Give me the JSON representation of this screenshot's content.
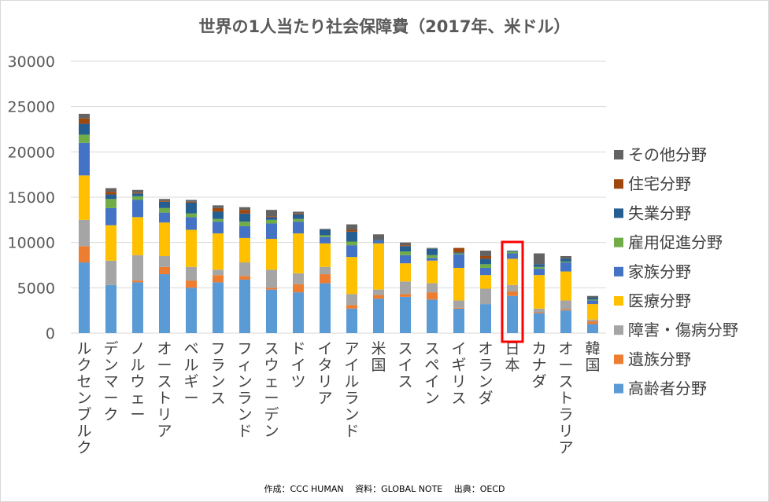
{
  "chart_data": {
    "type": "bar",
    "stacked": true,
    "title": "世界の1人当たり社会保障費（2017年、米ドル）",
    "ylim": [
      0,
      30000
    ],
    "yticks": [
      0,
      5000,
      10000,
      15000,
      20000,
      25000,
      30000
    ],
    "categories": [
      "ルクセンブルク",
      "デンマーク",
      "ノルウェー",
      "オーストリア",
      "ベルギー",
      "フランス",
      "フィンランド",
      "スウェーデン",
      "ドイツ",
      "イタリア",
      "アイルランド",
      "米国",
      "スイス",
      "スペイン",
      "イギリス",
      "オランダ",
      "日本",
      "カナダ",
      "オーストラリア",
      "韓国"
    ],
    "highlight_category": "日本",
    "legend_position": "right",
    "series": [
      {
        "name": "高齢者分野",
        "color": "#5B9BD5",
        "values": [
          7800,
          5300,
          5600,
          6500,
          5000,
          5600,
          5900,
          4800,
          4500,
          5500,
          2700,
          3800,
          4000,
          3700,
          2700,
          3200,
          4100,
          2200,
          2500,
          1000
        ]
      },
      {
        "name": "遺族分野",
        "color": "#ED7D31",
        "values": [
          1800,
          0,
          200,
          800,
          800,
          800,
          400,
          200,
          900,
          1000,
          400,
          400,
          300,
          800,
          100,
          0,
          500,
          100,
          100,
          300
        ]
      },
      {
        "name": "障害・傷病分野",
        "color": "#A5A5A5",
        "values": [
          2900,
          2700,
          2800,
          1200,
          1500,
          600,
          1500,
          2000,
          1200,
          800,
          1200,
          600,
          1400,
          1000,
          800,
          1700,
          700,
          400,
          1000,
          200
        ]
      },
      {
        "name": "医療分野",
        "color": "#FFC000",
        "values": [
          4900,
          3900,
          4200,
          3700,
          4100,
          4000,
          2700,
          3400,
          4400,
          2600,
          4100,
          5100,
          2000,
          2500,
          3600,
          1500,
          2900,
          3700,
          3200,
          1700
        ]
      },
      {
        "name": "家族分野",
        "color": "#4472C4",
        "values": [
          3600,
          1900,
          1900,
          1100,
          1400,
          1300,
          1300,
          1700,
          1300,
          700,
          1300,
          300,
          900,
          300,
          1500,
          800,
          600,
          700,
          1000,
          400
        ]
      },
      {
        "name": "雇用促進分野",
        "color": "#70AD47",
        "values": [
          900,
          1000,
          400,
          500,
          400,
          300,
          500,
          400,
          300,
          200,
          400,
          0,
          400,
          300,
          100,
          400,
          200,
          200,
          100,
          100
        ]
      },
      {
        "name": "失業分野",
        "color": "#255E91",
        "values": [
          1200,
          500,
          300,
          700,
          1200,
          800,
          900,
          300,
          500,
          600,
          1100,
          100,
          600,
          700,
          100,
          600,
          100,
          300,
          300,
          200
        ]
      },
      {
        "name": "住宅分野",
        "color": "#9E480E",
        "values": [
          600,
          300,
          100,
          100,
          100,
          400,
          400,
          100,
          100,
          0,
          200,
          0,
          100,
          0,
          500,
          300,
          0,
          0,
          0,
          0
        ]
      },
      {
        "name": "その他分野",
        "color": "#636363",
        "values": [
          500,
          400,
          300,
          200,
          200,
          300,
          300,
          700,
          200,
          100,
          600,
          600,
          300,
          100,
          0,
          600,
          0,
          1200,
          300,
          200
        ]
      }
    ]
  },
  "footer": "作成：CCC HUMAN　 資料：GLOBAL NOTE　 出典：OECD"
}
